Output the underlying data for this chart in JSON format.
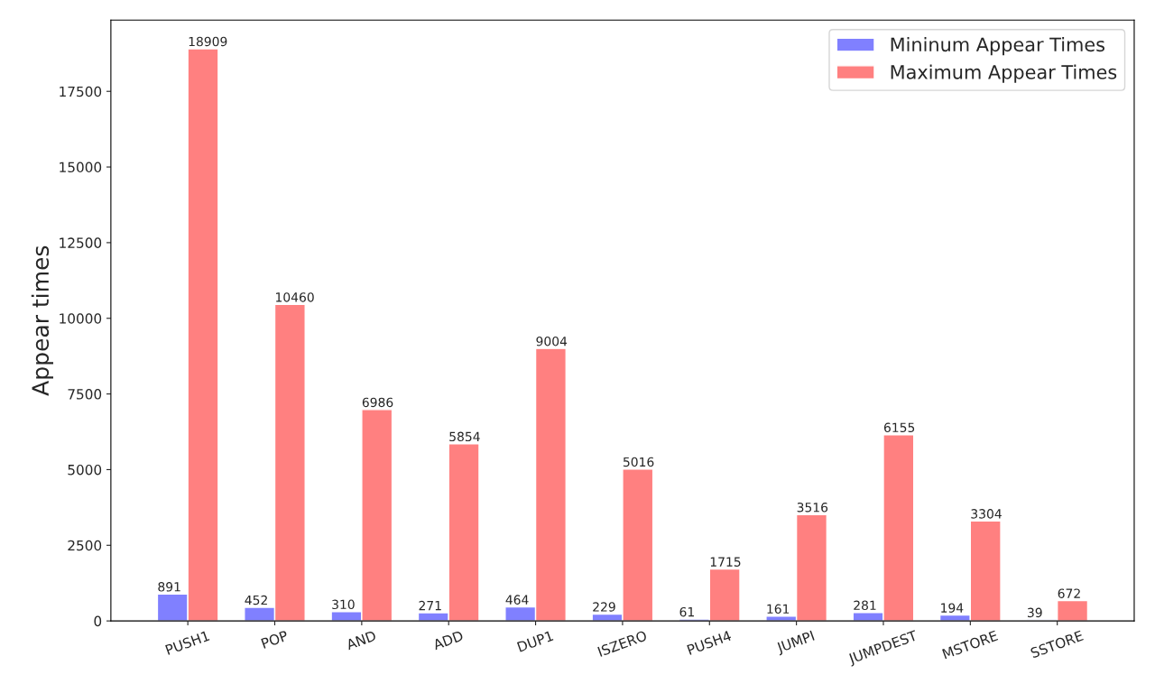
{
  "chart_data": {
    "type": "bar",
    "ylabel": "Appear times",
    "categories": [
      "PUSH1",
      "POP",
      "AND",
      "ADD",
      "DUP1",
      "ISZERO",
      "PUSH4",
      "JUMPI",
      "JUMPDEST",
      "MSTORE",
      "SSTORE"
    ],
    "series": [
      {
        "name": "Mininum Appear Times",
        "color": "#8080ff",
        "values": [
          891,
          452,
          310,
          271,
          464,
          229,
          61,
          161,
          281,
          194,
          39
        ]
      },
      {
        "name": "Maximum Appear Times",
        "color": "#ff8080",
        "values": [
          18909,
          10460,
          6986,
          5854,
          9004,
          5016,
          1715,
          3516,
          6155,
          3304,
          672
        ]
      }
    ],
    "ylim": [
      0,
      19854
    ],
    "yticks": [
      0,
      2500,
      5000,
      7500,
      10000,
      12500,
      15000,
      17500
    ],
    "data_labels": true,
    "legend": "top right",
    "grid": false
  }
}
